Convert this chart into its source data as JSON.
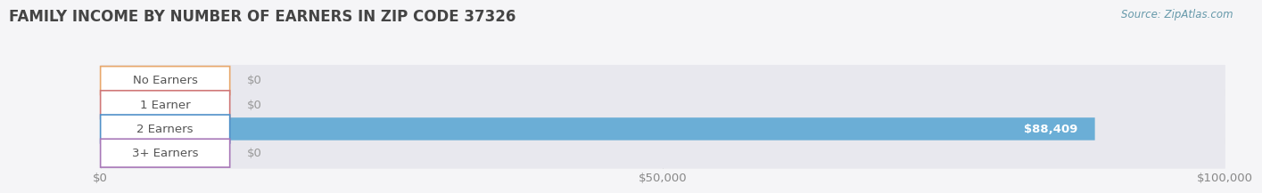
{
  "title": "FAMILY INCOME BY NUMBER OF EARNERS IN ZIP CODE 37326",
  "source_text": "Source: ZipAtlas.com",
  "categories": [
    "No Earners",
    "1 Earner",
    "2 Earners",
    "3+ Earners"
  ],
  "values": [
    0,
    0,
    88409,
    0
  ],
  "bar_colors": [
    "#f5c48a",
    "#f0a0a0",
    "#6baed6",
    "#c9a8d4"
  ],
  "label_border_colors": [
    "#e8a86c",
    "#d07878",
    "#5090c8",
    "#a878b8"
  ],
  "bar_bg_color": "#e8e8ee",
  "value_labels": [
    "$0",
    "$0",
    "$88,409",
    "$0"
  ],
  "x_tick_labels": [
    "$0",
    "$50,000",
    "$100,000"
  ],
  "x_tick_values": [
    0,
    50000,
    100000
  ],
  "xlim": [
    0,
    100000
  ],
  "background_color": "#f5f5f7",
  "title_fontsize": 12,
  "source_fontsize": 8.5,
  "label_fontsize": 9.5,
  "value_fontsize": 9.5,
  "tick_fontsize": 9.5
}
